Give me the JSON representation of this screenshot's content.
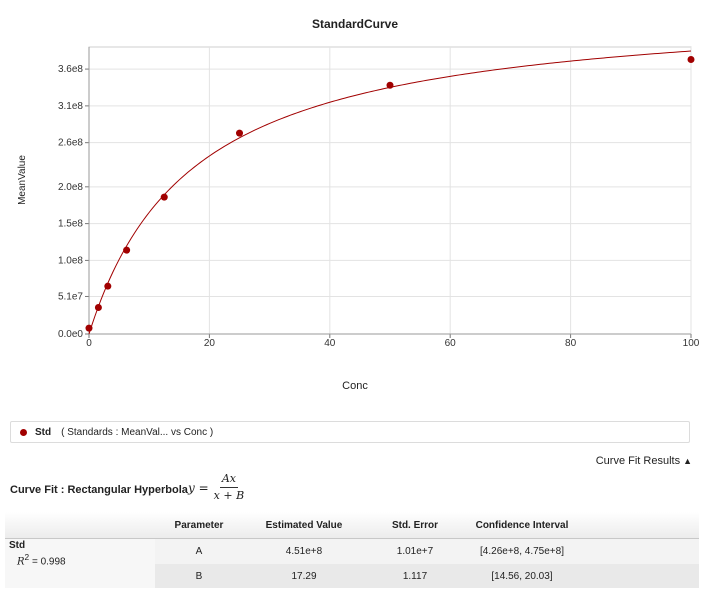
{
  "chart_data": {
    "type": "scatter",
    "title": "StandardCurve",
    "xlabel": "Conc",
    "ylabel": "MeanValue",
    "xlim": [
      0,
      100
    ],
    "ylim": [
      0,
      390000000
    ],
    "x_ticks": [
      0,
      20,
      40,
      60,
      80,
      100
    ],
    "x_tick_labels": [
      "0",
      "20",
      "40",
      "60",
      "80",
      "100"
    ],
    "y_ticks": [
      0,
      51000000,
      100000000,
      150000000,
      200000000,
      260000000,
      310000000,
      360000000
    ],
    "y_tick_labels": [
      "0.0e0",
      "5.1e7",
      "1.0e8",
      "1.5e8",
      "2.0e8",
      "2.6e8",
      "3.1e8",
      "3.6e8"
    ],
    "grid": true,
    "series": [
      {
        "name": "Std",
        "color": "#a10000",
        "x": [
          0,
          1.5625,
          3.125,
          6.25,
          12.5,
          25,
          50,
          100
        ],
        "y": [
          8000000,
          36000000,
          65000000,
          114000000,
          186000000,
          273000000,
          338000000,
          373000000
        ]
      }
    ],
    "fit": {
      "model": "rectangular_hyperbola",
      "A": 451000000,
      "B": 17.29,
      "color": "#a10000"
    }
  },
  "legend": {
    "name": "Std",
    "description": "( Standards : MeanVal...   vs Conc  )"
  },
  "results": {
    "toggle_label": "Curve Fit Results",
    "fit_label": "Curve Fit : Rectangular Hyperbola",
    "formula": {
      "lhs": "y =",
      "numerator": "Ax",
      "denominator": "x + B"
    },
    "columns": [
      "Parameter",
      "Estimated Value",
      "Std. Error",
      "Confidence Interval"
    ],
    "series_name": "Std",
    "r2_label": "R",
    "r2_exp": "2",
    "r2_value": " = 0.998",
    "rows": [
      {
        "parameter": "A",
        "estimate": "4.51e+8",
        "std_error": "1.01e+7",
        "ci": "[4.26e+8, 4.75e+8]"
      },
      {
        "parameter": "B",
        "estimate": "17.29",
        "std_error": "1.117",
        "ci": "[14.56, 20.03]"
      }
    ]
  }
}
